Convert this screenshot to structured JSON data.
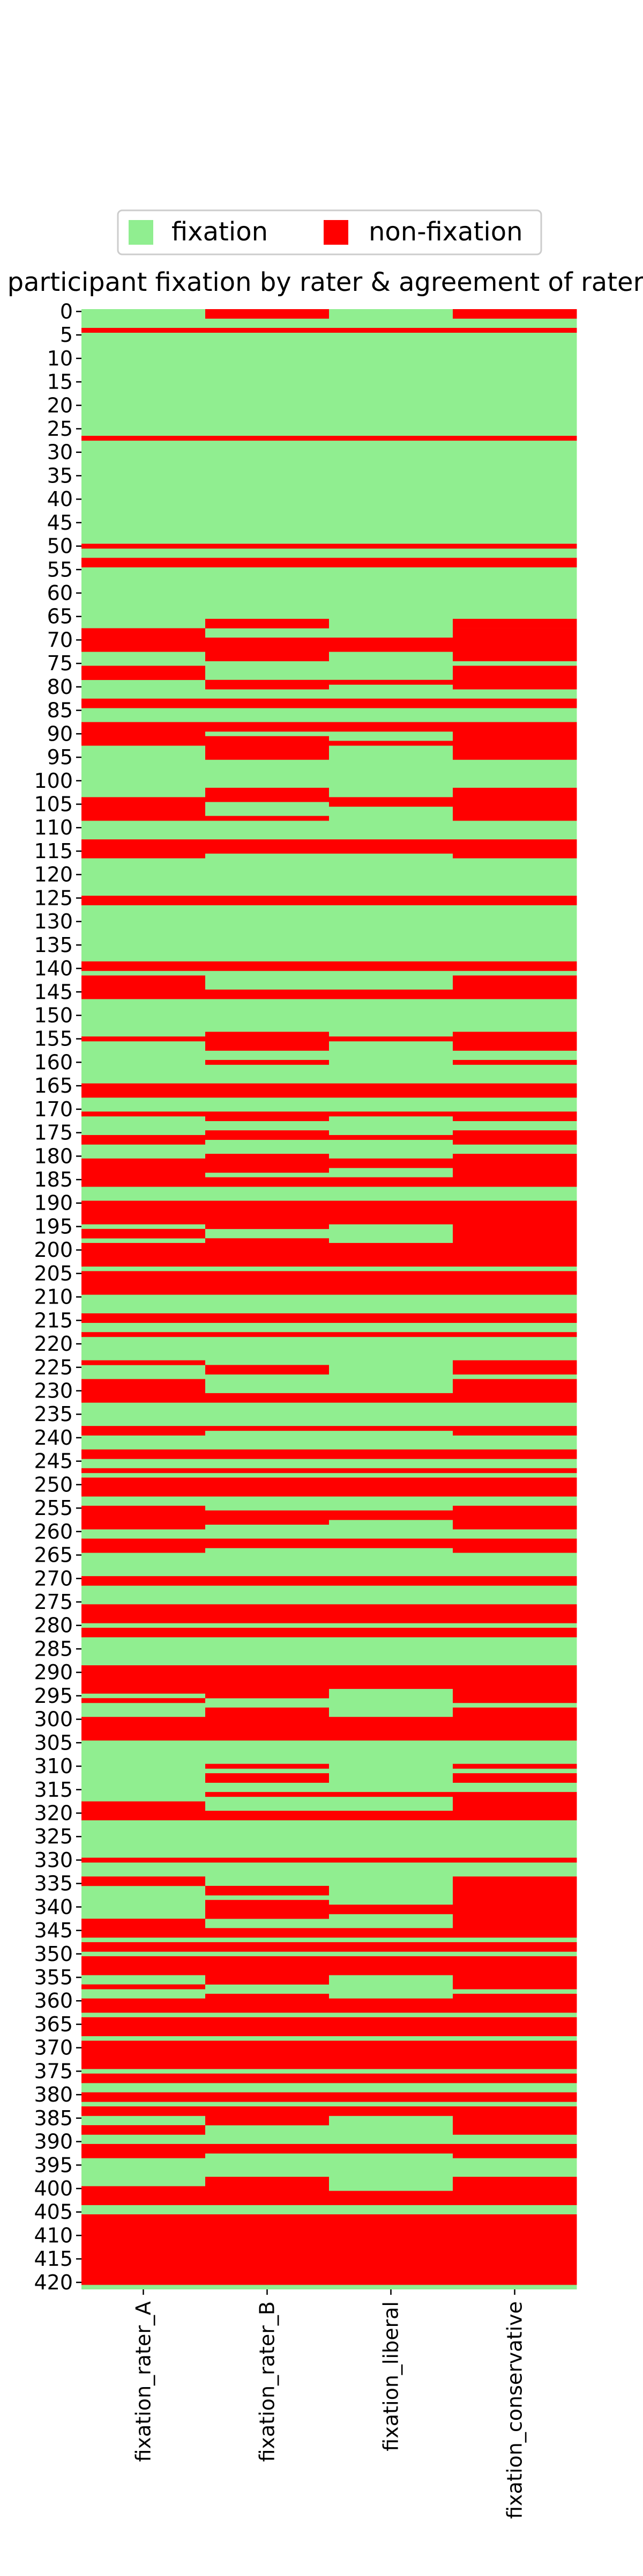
{
  "chart_data": {
    "type": "heatmap",
    "title": "participant fixation by rater & agreement of raters",
    "columns": [
      "fixation_rater_A",
      "fixation_rater_B",
      "fixation_liberal",
      "fixation_conservative"
    ],
    "n_rows": 422,
    "y_ticks": [
      0,
      5,
      10,
      15,
      20,
      25,
      30,
      35,
      40,
      45,
      50,
      55,
      60,
      65,
      70,
      75,
      80,
      85,
      90,
      95,
      100,
      105,
      110,
      115,
      120,
      125,
      130,
      135,
      140,
      145,
      150,
      155,
      160,
      165,
      170,
      175,
      180,
      185,
      190,
      195,
      200,
      205,
      210,
      215,
      220,
      225,
      230,
      235,
      240,
      245,
      250,
      255,
      260,
      265,
      270,
      275,
      280,
      285,
      290,
      295,
      300,
      305,
      310,
      315,
      320,
      325,
      330,
      335,
      340,
      345,
      350,
      355,
      360,
      365,
      370,
      375,
      380,
      385,
      390,
      395,
      400,
      405,
      410,
      415,
      420
    ],
    "legend": {
      "placement": "top-center",
      "items": [
        {
          "label": "fixation",
          "color": "#90ee90"
        },
        {
          "label": "non-fixation",
          "color": "#ff0000"
        }
      ]
    },
    "colors": {
      "fixation": "#90ee90",
      "non_fixation": "#ff0000"
    },
    "non_fixation_ranges": {
      "fixation_rater_A": [
        [
          4,
          4
        ],
        [
          27,
          27
        ],
        [
          50,
          50
        ],
        [
          53,
          54
        ],
        [
          68,
          72
        ],
        [
          76,
          78
        ],
        [
          83,
          84
        ],
        [
          88,
          92
        ],
        [
          104,
          108
        ],
        [
          113,
          116
        ],
        [
          125,
          126
        ],
        [
          139,
          140
        ],
        [
          142,
          146
        ],
        [
          155,
          155
        ],
        [
          165,
          167
        ],
        [
          171,
          171
        ],
        [
          176,
          177
        ],
        [
          181,
          186
        ],
        [
          190,
          194
        ],
        [
          196,
          197
        ],
        [
          199,
          203
        ],
        [
          205,
          209
        ],
        [
          214,
          215
        ],
        [
          218,
          218
        ],
        [
          224,
          224
        ],
        [
          228,
          232
        ],
        [
          238,
          239
        ],
        [
          243,
          244
        ],
        [
          247,
          247
        ],
        [
          249,
          252
        ],
        [
          255,
          259
        ],
        [
          262,
          264
        ],
        [
          270,
          271
        ],
        [
          276,
          279
        ],
        [
          281,
          282
        ],
        [
          289,
          294
        ],
        [
          296,
          296
        ],
        [
          300,
          304
        ],
        [
          318,
          321
        ],
        [
          330,
          330
        ],
        [
          334,
          335
        ],
        [
          343,
          346
        ],
        [
          348,
          349
        ],
        [
          351,
          354
        ],
        [
          357,
          357
        ],
        [
          360,
          362
        ],
        [
          364,
          367
        ],
        [
          369,
          374
        ],
        [
          376,
          377
        ],
        [
          380,
          381
        ],
        [
          383,
          384
        ],
        [
          387,
          388
        ],
        [
          391,
          393
        ],
        [
          400,
          403
        ],
        [
          406,
          420
        ]
      ],
      "fixation_rater_B": [
        [
          0,
          1
        ],
        [
          4,
          4
        ],
        [
          27,
          27
        ],
        [
          50,
          50
        ],
        [
          53,
          54
        ],
        [
          66,
          67
        ],
        [
          70,
          74
        ],
        [
          79,
          80
        ],
        [
          83,
          84
        ],
        [
          88,
          89
        ],
        [
          91,
          95
        ],
        [
          102,
          104
        ],
        [
          108,
          108
        ],
        [
          113,
          115
        ],
        [
          125,
          126
        ],
        [
          139,
          140
        ],
        [
          145,
          146
        ],
        [
          154,
          157
        ],
        [
          160,
          160
        ],
        [
          165,
          167
        ],
        [
          171,
          172
        ],
        [
          175,
          176
        ],
        [
          180,
          183
        ],
        [
          185,
          186
        ],
        [
          190,
          195
        ],
        [
          198,
          203
        ],
        [
          205,
          209
        ],
        [
          214,
          215
        ],
        [
          218,
          218
        ],
        [
          225,
          226
        ],
        [
          231,
          232
        ],
        [
          238,
          238
        ],
        [
          243,
          244
        ],
        [
          247,
          247
        ],
        [
          249,
          252
        ],
        [
          256,
          258
        ],
        [
          262,
          263
        ],
        [
          270,
          271
        ],
        [
          276,
          279
        ],
        [
          281,
          282
        ],
        [
          289,
          295
        ],
        [
          298,
          304
        ],
        [
          310,
          310
        ],
        [
          312,
          313
        ],
        [
          316,
          316
        ],
        [
          320,
          321
        ],
        [
          330,
          330
        ],
        [
          336,
          337
        ],
        [
          339,
          342
        ],
        [
          345,
          346
        ],
        [
          348,
          349
        ],
        [
          351,
          356
        ],
        [
          359,
          362
        ],
        [
          364,
          367
        ],
        [
          369,
          374
        ],
        [
          376,
          377
        ],
        [
          380,
          381
        ],
        [
          383,
          386
        ],
        [
          391,
          392
        ],
        [
          398,
          403
        ],
        [
          406,
          420
        ]
      ],
      "fixation_liberal": [
        [
          4,
          4
        ],
        [
          27,
          27
        ],
        [
          50,
          50
        ],
        [
          53,
          54
        ],
        [
          70,
          72
        ],
        [
          79,
          79
        ],
        [
          83,
          84
        ],
        [
          88,
          89
        ],
        [
          92,
          92
        ],
        [
          104,
          105
        ],
        [
          113,
          115
        ],
        [
          125,
          126
        ],
        [
          139,
          140
        ],
        [
          145,
          146
        ],
        [
          155,
          155
        ],
        [
          165,
          167
        ],
        [
          171,
          171
        ],
        [
          176,
          176
        ],
        [
          181,
          182
        ],
        [
          185,
          186
        ],
        [
          190,
          194
        ],
        [
          199,
          203
        ],
        [
          205,
          209
        ],
        [
          214,
          215
        ],
        [
          218,
          218
        ],
        [
          231,
          232
        ],
        [
          238,
          238
        ],
        [
          243,
          244
        ],
        [
          247,
          247
        ],
        [
          249,
          252
        ],
        [
          256,
          257
        ],
        [
          262,
          263
        ],
        [
          270,
          271
        ],
        [
          276,
          279
        ],
        [
          281,
          282
        ],
        [
          289,
          293
        ],
        [
          300,
          304
        ],
        [
          316,
          316
        ],
        [
          320,
          321
        ],
        [
          330,
          330
        ],
        [
          340,
          341
        ],
        [
          345,
          346
        ],
        [
          348,
          349
        ],
        [
          351,
          354
        ],
        [
          360,
          362
        ],
        [
          364,
          367
        ],
        [
          369,
          374
        ],
        [
          376,
          377
        ],
        [
          380,
          381
        ],
        [
          383,
          384
        ],
        [
          391,
          392
        ],
        [
          401,
          403
        ],
        [
          406,
          420
        ]
      ],
      "fixation_conservative": [
        [
          0,
          1
        ],
        [
          4,
          4
        ],
        [
          27,
          27
        ],
        [
          50,
          50
        ],
        [
          53,
          54
        ],
        [
          66,
          67
        ],
        [
          68,
          74
        ],
        [
          76,
          80
        ],
        [
          83,
          84
        ],
        [
          88,
          95
        ],
        [
          102,
          108
        ],
        [
          113,
          116
        ],
        [
          125,
          126
        ],
        [
          139,
          140
        ],
        [
          142,
          146
        ],
        [
          154,
          157
        ],
        [
          160,
          160
        ],
        [
          165,
          167
        ],
        [
          171,
          172
        ],
        [
          175,
          177
        ],
        [
          180,
          186
        ],
        [
          190,
          203
        ],
        [
          205,
          209
        ],
        [
          214,
          215
        ],
        [
          218,
          218
        ],
        [
          224,
          226
        ],
        [
          228,
          232
        ],
        [
          238,
          239
        ],
        [
          243,
          244
        ],
        [
          247,
          247
        ],
        [
          249,
          252
        ],
        [
          255,
          259
        ],
        [
          262,
          264
        ],
        [
          270,
          271
        ],
        [
          276,
          279
        ],
        [
          281,
          282
        ],
        [
          289,
          296
        ],
        [
          298,
          304
        ],
        [
          310,
          310
        ],
        [
          312,
          313
        ],
        [
          316,
          321
        ],
        [
          330,
          330
        ],
        [
          334,
          346
        ],
        [
          348,
          349
        ],
        [
          351,
          357
        ],
        [
          359,
          362
        ],
        [
          364,
          367
        ],
        [
          369,
          374
        ],
        [
          376,
          377
        ],
        [
          380,
          381
        ],
        [
          383,
          386
        ],
        [
          387,
          388
        ],
        [
          391,
          393
        ],
        [
          398,
          403
        ],
        [
          406,
          420
        ]
      ]
    }
  }
}
